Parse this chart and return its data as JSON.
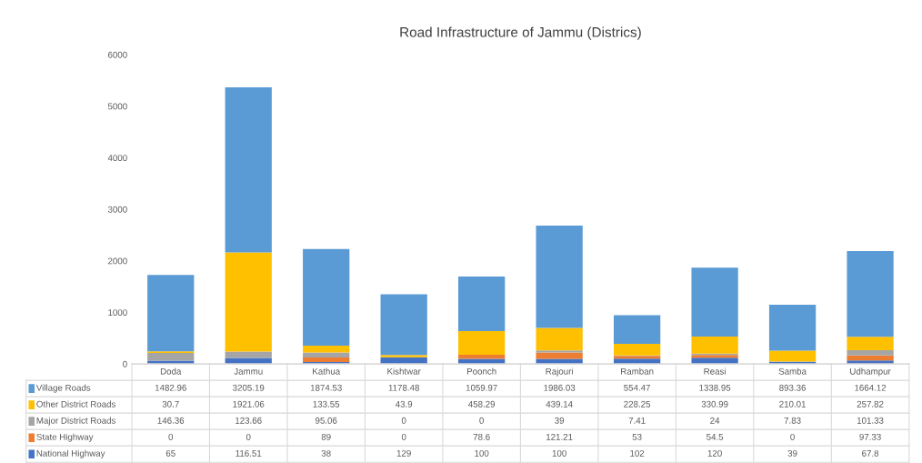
{
  "chart_data": {
    "type": "bar",
    "title": "Road Infrastructure of Jammu (Districs)",
    "stacked": true,
    "data_labels": true,
    "categories": [
      "Doda",
      "Jammu",
      "Kathua",
      "Kishtwar",
      "Poonch",
      "Rajouri",
      "Ramban",
      "Reasi",
      "Samba",
      "Udhampur"
    ],
    "ylim": [
      0,
      6000
    ],
    "yticks": [
      0,
      1000,
      2000,
      3000,
      4000,
      5000,
      6000
    ],
    "grid": false,
    "legend": "bottom left",
    "series": [
      {
        "name": "National Highway",
        "color": "#4472c4",
        "values": [
          65,
          116.51,
          38,
          129,
          100,
          100,
          102,
          120,
          39,
          67.8
        ]
      },
      {
        "name": "State Highway",
        "color": "#ed7d31",
        "values": [
          0,
          0,
          89,
          0,
          78.6,
          121.21,
          53,
          54.5,
          0,
          97.33
        ]
      },
      {
        "name": "Major District Roads",
        "color": "#a5a5a5",
        "values": [
          146.36,
          123.66,
          95.06,
          0,
          0,
          39,
          7.41,
          24,
          7.83,
          101.33
        ]
      },
      {
        "name": "Other District Roads",
        "color": "#ffc000",
        "values": [
          30.7,
          1921.06,
          133.55,
          43.9,
          458.29,
          439.14,
          228.25,
          330.99,
          210.01,
          257.82
        ]
      },
      {
        "name": "Village Roads",
        "color": "#5b9bd5",
        "values": [
          1482.96,
          3205.19,
          1874.53,
          1178.48,
          1059.97,
          1986.03,
          554.47,
          1338.95,
          893.36,
          1664.12
        ]
      }
    ]
  }
}
